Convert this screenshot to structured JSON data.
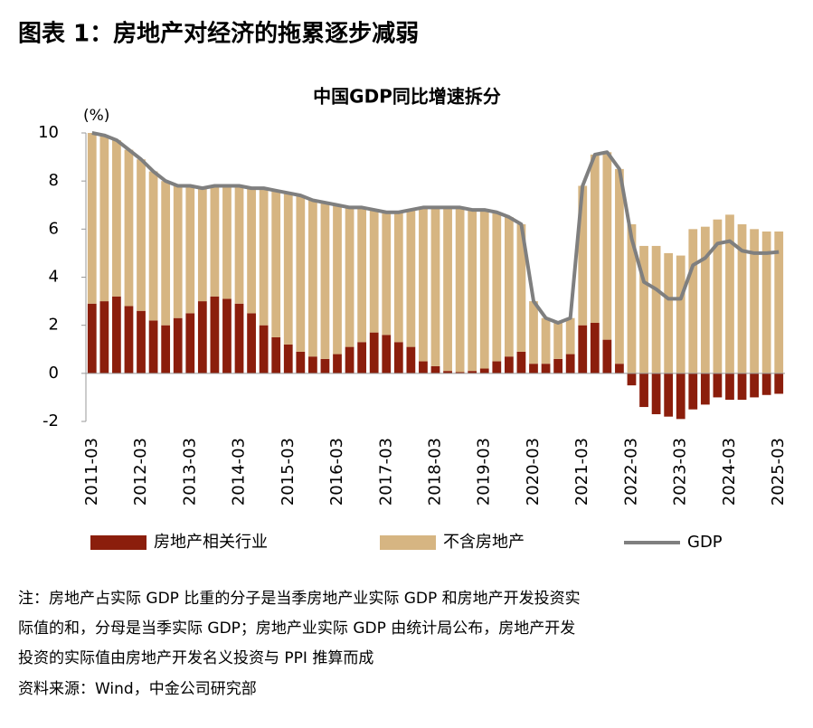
{
  "title": "图表 1：房地产对经济的拖累逐步减弱",
  "chart_data": {
    "type": "bar_line",
    "title": "中国GDP同比增速拆分",
    "y_unit": "(%)",
    "categories": [
      "2011-03",
      null,
      null,
      null,
      "2012-03",
      null,
      null,
      null,
      "2013-03",
      null,
      null,
      null,
      "2014-03",
      null,
      null,
      null,
      "2015-03",
      null,
      null,
      null,
      "2016-03",
      null,
      null,
      null,
      "2017-03",
      null,
      null,
      null,
      "2018-03",
      null,
      null,
      null,
      "2019-03",
      null,
      null,
      null,
      "2020-03",
      null,
      null,
      null,
      "2021-03",
      null,
      null,
      null,
      "2022-03",
      null,
      null,
      null,
      "2023-03",
      null,
      null,
      null,
      "2024-03",
      null,
      null,
      null,
      "2025-03"
    ],
    "series": [
      {
        "name": "房地产相关行业",
        "type": "bar",
        "color": "#8b1e0c",
        "values": [
          2.9,
          3.0,
          3.2,
          2.8,
          2.6,
          2.2,
          2.0,
          2.3,
          2.5,
          3.0,
          3.2,
          3.1,
          2.9,
          2.5,
          2.0,
          1.5,
          1.2,
          0.9,
          0.7,
          0.6,
          0.8,
          1.1,
          1.3,
          1.7,
          1.6,
          1.3,
          1.1,
          0.5,
          0.3,
          0.1,
          0.05,
          0.1,
          0.2,
          0.5,
          0.7,
          0.9,
          0.4,
          0.4,
          0.6,
          0.8,
          2.0,
          2.1,
          1.4,
          0.4,
          -0.5,
          -1.4,
          -1.7,
          -1.8,
          -1.9,
          -1.5,
          -1.3,
          -1.0,
          -1.1,
          -1.1,
          -1.0,
          -0.9,
          -0.85
        ]
      },
      {
        "name": "不含房地产",
        "type": "bar",
        "color": "#d6b582",
        "values": [
          7.1,
          6.9,
          6.5,
          6.5,
          6.3,
          6.2,
          6.0,
          5.5,
          5.3,
          4.7,
          4.6,
          4.7,
          4.9,
          5.2,
          5.7,
          6.1,
          6.3,
          6.5,
          6.5,
          6.5,
          6.2,
          5.8,
          5.6,
          5.1,
          5.1,
          5.4,
          5.7,
          6.4,
          6.6,
          6.8,
          6.85,
          6.7,
          6.6,
          6.2,
          5.8,
          5.3,
          2.6,
          1.9,
          1.5,
          1.5,
          5.8,
          7.0,
          7.8,
          8.1,
          6.2,
          5.3,
          5.3,
          5.0,
          4.9,
          6.0,
          6.1,
          6.4,
          6.6,
          6.2,
          6.0,
          5.9,
          5.9
        ]
      },
      {
        "name": "GDP",
        "type": "line",
        "color": "#7f7f7f",
        "values": [
          10.0,
          9.9,
          9.7,
          9.3,
          8.9,
          8.4,
          8.0,
          7.8,
          7.8,
          7.7,
          7.8,
          7.8,
          7.8,
          7.7,
          7.7,
          7.6,
          7.5,
          7.4,
          7.2,
          7.1,
          7.0,
          6.9,
          6.9,
          6.8,
          6.7,
          6.7,
          6.8,
          6.9,
          6.9,
          6.9,
          6.9,
          6.8,
          6.8,
          6.7,
          6.5,
          6.2,
          3.0,
          2.3,
          2.1,
          2.3,
          7.8,
          9.1,
          9.2,
          8.5,
          5.6,
          3.8,
          3.5,
          3.1,
          3.1,
          4.5,
          4.8,
          5.4,
          5.5,
          5.1,
          5.0,
          5.0,
          5.05
        ]
      }
    ],
    "ylim": [
      -2,
      10
    ],
    "yticks": [
      -2,
      0,
      2,
      4,
      6,
      8,
      10
    ],
    "negative_tick_color": "#e00000",
    "legend": "bottom"
  },
  "notes": [
    "注：房地产占实际 GDP 比重的分子是当季房地产业实际 GDP 和房地产开发投资实",
    "际值的和，分母是当季实际 GDP；房地产业实际 GDP 由统计局公布，房地产开发",
    "投资的实际值由房地产开发名义投资与 PPI 推算而成"
  ],
  "source": "资料来源：Wind，中金公司研究部"
}
